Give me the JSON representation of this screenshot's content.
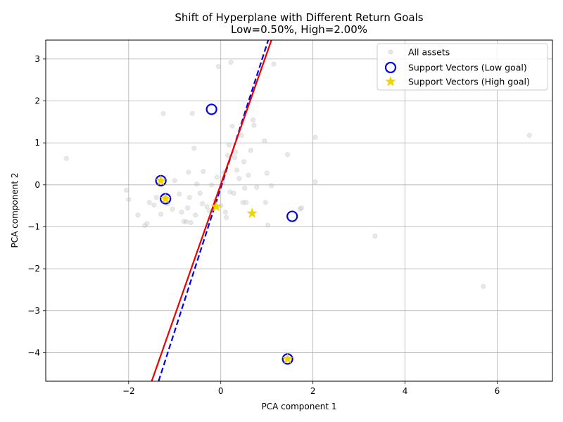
{
  "chart_data": {
    "type": "scatter",
    "title": "Shift of Hyperplane with Different Return Goals",
    "subtitle": "Low=0.50%, High=2.00%",
    "xlabel": "PCA component 1",
    "ylabel": "PCA component 2",
    "xlim": [
      -3.8,
      7.2
    ],
    "ylim": [
      -4.68,
      3.45
    ],
    "xticks": [
      -2,
      0,
      2,
      4,
      6
    ],
    "yticks": [
      -4,
      -3,
      -2,
      -1,
      0,
      1,
      2,
      3
    ],
    "grid": true,
    "legend_position": "top-right",
    "series": [
      {
        "name": "All assets",
        "marker": "circle",
        "color": "#bbbbbb",
        "points": [
          [
            -3.35,
            0.63
          ],
          [
            -2.05,
            -0.13
          ],
          [
            -2.0,
            -0.35
          ],
          [
            -1.8,
            -0.72
          ],
          [
            -1.65,
            -0.97
          ],
          [
            -1.6,
            -0.92
          ],
          [
            -1.55,
            -0.42
          ],
          [
            -1.45,
            -0.48
          ],
          [
            -1.4,
            -0.3
          ],
          [
            -1.3,
            -0.7
          ],
          [
            -1.25,
            1.7
          ],
          [
            -1.2,
            -0.27
          ],
          [
            -1.15,
            -0.45
          ],
          [
            -1.05,
            -0.58
          ],
          [
            -1.0,
            0.1
          ],
          [
            -0.9,
            -0.22
          ],
          [
            -0.85,
            -0.65
          ],
          [
            -0.8,
            -0.87
          ],
          [
            -0.75,
            -0.88
          ],
          [
            -0.72,
            -0.55
          ],
          [
            -0.7,
            0.3
          ],
          [
            -0.68,
            -0.3
          ],
          [
            -0.65,
            -0.9
          ],
          [
            -0.62,
            1.7
          ],
          [
            -0.58,
            0.87
          ],
          [
            -0.55,
            -0.72
          ],
          [
            -0.52,
            0.02
          ],
          [
            -0.45,
            -0.2
          ],
          [
            -0.4,
            -0.45
          ],
          [
            -0.38,
            0.32
          ],
          [
            -0.3,
            -0.52
          ],
          [
            -0.25,
            -0.62
          ],
          [
            -0.2,
            0.0
          ],
          [
            -0.12,
            -0.38
          ],
          [
            -0.08,
            0.18
          ],
          [
            -0.05,
            2.82
          ],
          [
            0.0,
            -0.5
          ],
          [
            0.05,
            0.05
          ],
          [
            0.08,
            0.3
          ],
          [
            0.1,
            -0.65
          ],
          [
            0.12,
            -0.78
          ],
          [
            0.15,
            0.7
          ],
          [
            0.18,
            0.95
          ],
          [
            0.2,
            -0.17
          ],
          [
            0.22,
            2.92
          ],
          [
            0.25,
            1.4
          ],
          [
            0.28,
            -0.2
          ],
          [
            0.3,
            0.65
          ],
          [
            0.32,
            0.78
          ],
          [
            0.35,
            0.35
          ],
          [
            0.4,
            0.15
          ],
          [
            0.45,
            1.18
          ],
          [
            0.48,
            -0.42
          ],
          [
            0.5,
            0.55
          ],
          [
            0.52,
            -0.08
          ],
          [
            0.55,
            -0.42
          ],
          [
            0.6,
            0.23
          ],
          [
            0.65,
            0.82
          ],
          [
            0.7,
            1.55
          ],
          [
            0.72,
            1.42
          ],
          [
            0.78,
            -0.06
          ],
          [
            0.95,
            1.05
          ],
          [
            0.97,
            -0.42
          ],
          [
            1.0,
            0.28
          ],
          [
            1.02,
            -0.96
          ],
          [
            1.1,
            -0.02
          ],
          [
            1.15,
            2.88
          ],
          [
            1.45,
            0.72
          ],
          [
            1.72,
            -0.58
          ],
          [
            1.75,
            -0.55
          ],
          [
            2.05,
            0.07
          ],
          [
            2.05,
            1.13
          ],
          [
            3.35,
            -1.22
          ],
          [
            5.7,
            -2.42
          ],
          [
            6.7,
            1.18
          ]
        ]
      },
      {
        "name": "Support Vectors (Low goal)",
        "marker": "open-circle",
        "color": "#0000ee",
        "points": [
          [
            -0.2,
            1.8
          ],
          [
            -1.3,
            0.1
          ],
          [
            -1.2,
            -0.33
          ],
          [
            1.55,
            -0.75
          ],
          [
            1.45,
            -4.15
          ]
        ]
      },
      {
        "name": "Support Vectors (High goal)",
        "marker": "star",
        "color": "#f2d500",
        "points": [
          [
            -1.3,
            0.1
          ],
          [
            -1.2,
            -0.33
          ],
          [
            -0.1,
            -0.52
          ],
          [
            0.68,
            -0.68
          ],
          [
            1.45,
            -4.15
          ]
        ]
      }
    ],
    "lines": [
      {
        "label": "Hyperplane (Low goal)",
        "style": "dashed",
        "color": "#0000ee",
        "x": [
          -1.35,
          1.03
        ],
        "y": [
          -4.68,
          3.45
        ]
      },
      {
        "label": "Hyperplane (High goal)",
        "style": "solid",
        "color": "#ee0000",
        "x": [
          -1.5,
          1.1
        ],
        "y": [
          -4.68,
          3.45
        ]
      }
    ]
  }
}
